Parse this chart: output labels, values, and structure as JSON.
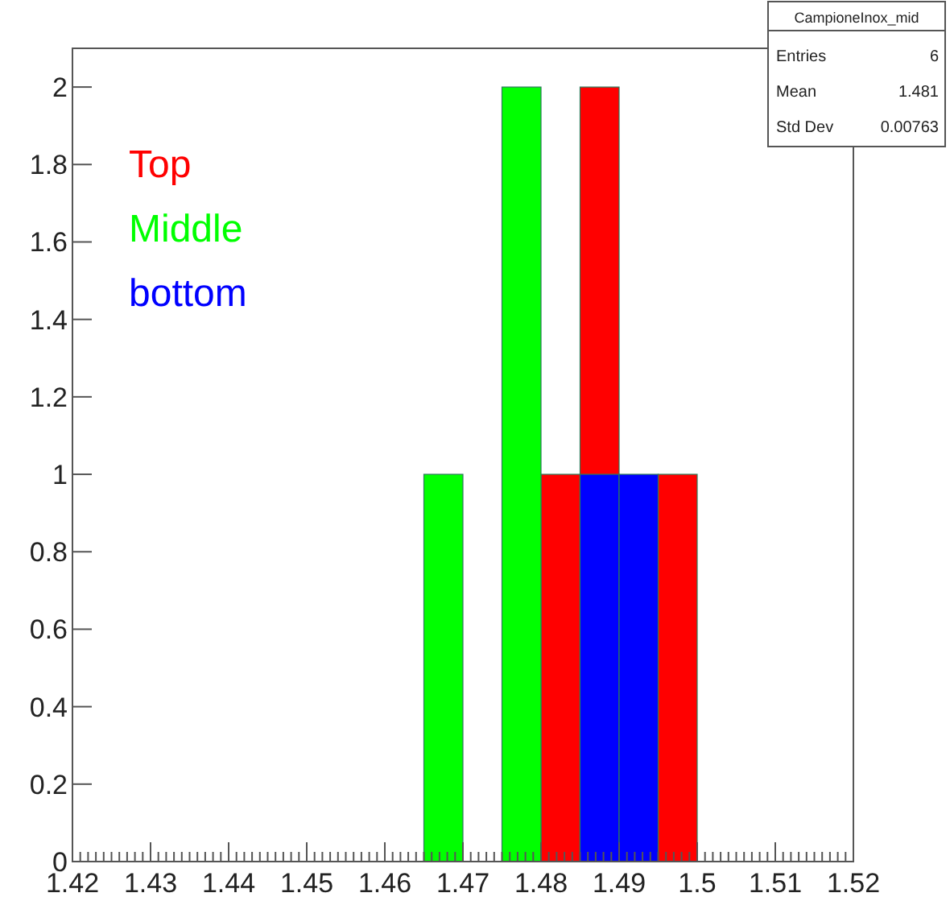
{
  "chart_data": {
    "type": "histogram",
    "bins": [
      1.42,
      1.425,
      1.43,
      1.435,
      1.44,
      1.445,
      1.45,
      1.455,
      1.46,
      1.465,
      1.47,
      1.475,
      1.48,
      1.485,
      1.49,
      1.495,
      1.5,
      1.505,
      1.51,
      1.515,
      1.52
    ],
    "series": [
      {
        "name": "Top",
        "color": "#ff0000",
        "values": [
          0,
          0,
          0,
          0,
          0,
          0,
          0,
          0,
          0,
          0,
          0,
          0,
          1,
          2,
          null,
          1,
          0,
          0,
          0,
          0
        ]
      },
      {
        "name": "Middle",
        "color": "#00ff00",
        "values": [
          0,
          0,
          0,
          0,
          0,
          0,
          0,
          0,
          0,
          1,
          0,
          2,
          0,
          0,
          0,
          0,
          0,
          0,
          0,
          0
        ]
      },
      {
        "name": "bottom",
        "color": "#0000ff",
        "values": [
          0,
          0,
          0,
          0,
          0,
          0,
          0,
          0,
          0,
          0,
          0,
          0,
          0,
          1,
          1,
          0,
          0,
          0,
          0,
          0
        ]
      }
    ],
    "xlim": [
      1.42,
      1.52
    ],
    "xticks": [
      1.42,
      1.43,
      1.44,
      1.45,
      1.46,
      1.47,
      1.48,
      1.49,
      1.5,
      1.51,
      1.52
    ],
    "ylim": [
      0,
      2.1
    ],
    "yticks": [
      0,
      0.2,
      0.4,
      0.6,
      0.8,
      1,
      1.2,
      1.4,
      1.6,
      1.8,
      2
    ],
    "legend": "top left",
    "grid": false,
    "annotations": [
      "CampioneInox_mid",
      "Entries",
      "6",
      "Mean",
      "1.481",
      "Std Dev",
      "0.00763"
    ]
  }
}
